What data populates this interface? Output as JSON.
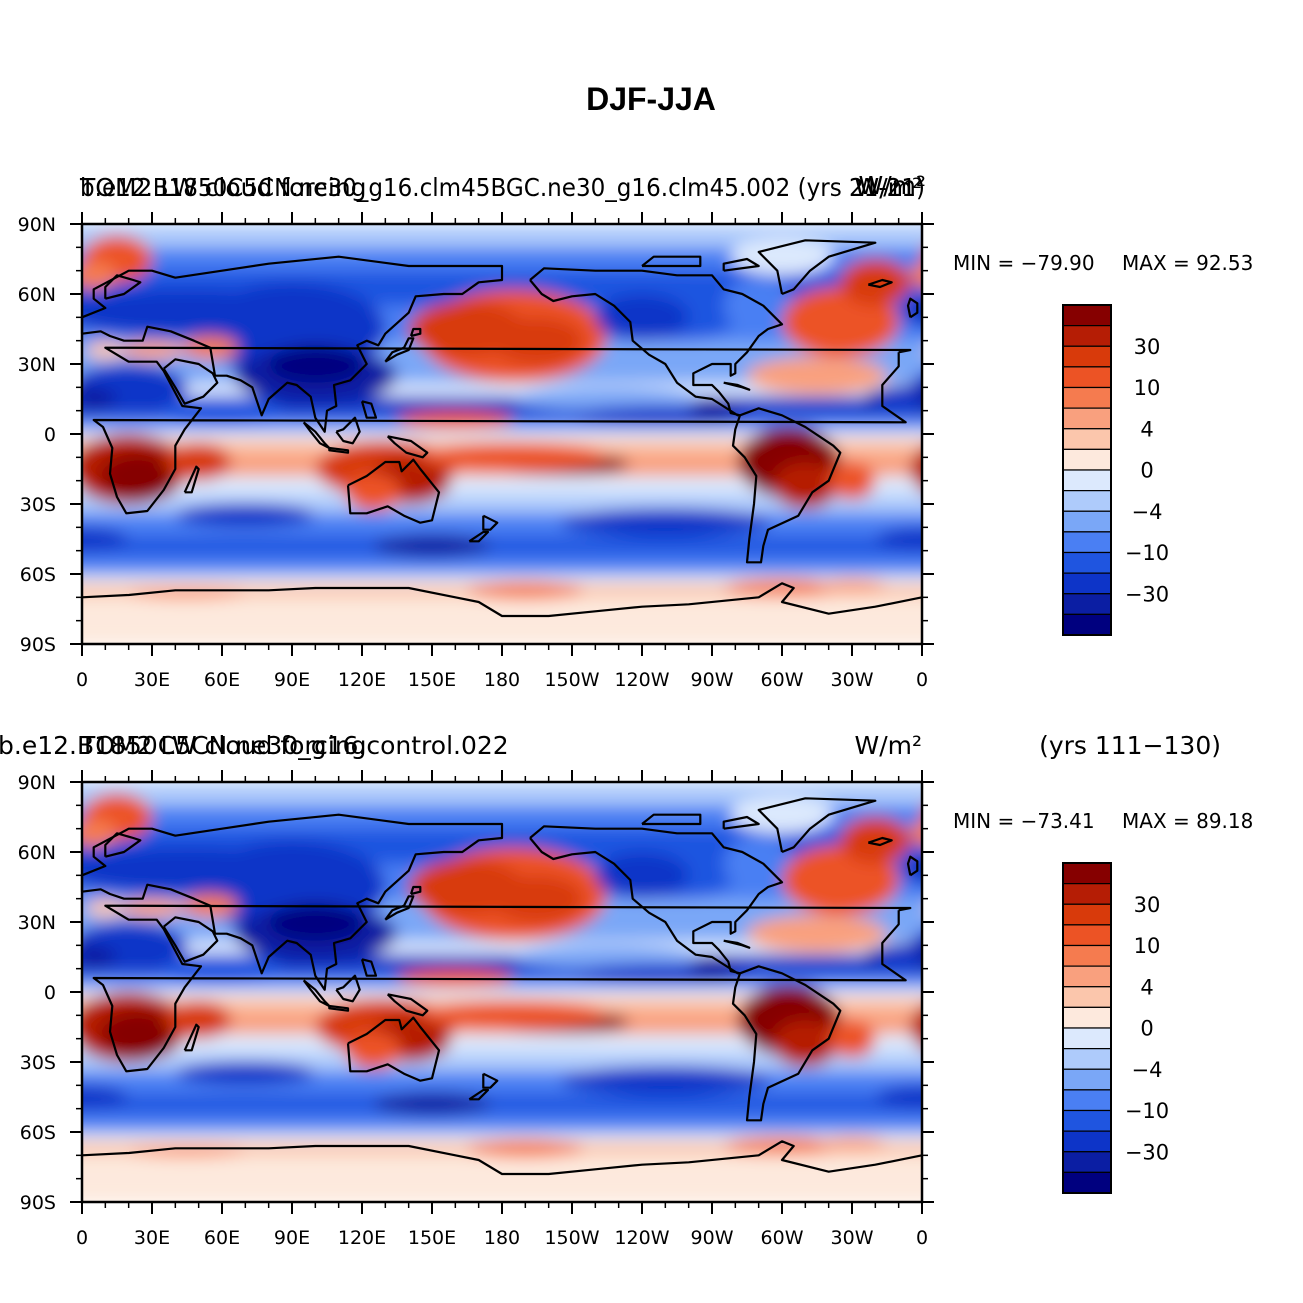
{
  "title": "DJF-JJA",
  "colors": {
    "land_outline": "#000000",
    "levels": [
      "#00007f",
      "#0b1ea3",
      "#0d34c8",
      "#1f55e0",
      "#4a7ff3",
      "#7aa7f7",
      "#aecbfb",
      "#dce9fd",
      "#fde9dd",
      "#fbc6ac",
      "#f9a07e",
      "#f57b4f",
      "#ec5325",
      "#d83a0b",
      "#b51d05",
      "#860000"
    ]
  },
  "panels": [
    {
      "left_label_a": "TOM2 LW cloud forcing",
      "left_label_b": "b.e12.B1850C5CN.ne30_g16.clm45BGC.ne30_g16.clm45.002 (yrs 21-21)",
      "right_label_a": "W/m²",
      "right_label_b": "W/m²",
      "extra_label": "",
      "min_label": "MIN = −79.90",
      "max_label": "MAX =  92.53"
    },
    {
      "left_label_a": "TOM2 LW cloud forcing",
      "left_label_b": "b.e12.B1850C5CN.ne30_g16.control.022",
      "right_label_a": "W/m²",
      "right_label_b": "",
      "extra_label": "(yrs 111−130)",
      "min_label": "MIN = −73.41",
      "max_label": "MAX =  89.18"
    }
  ],
  "lat_ticks": [
    "90N",
    "60N",
    "30N",
    "0",
    "30S",
    "60S",
    "90S"
  ],
  "lon_ticks": [
    "0",
    "30E",
    "60E",
    "90E",
    "120E",
    "150E",
    "180",
    "150W",
    "120W",
    "90W",
    "60W",
    "30W",
    "0"
  ],
  "colorbar_labels": [
    "30",
    "10",
    "4",
    "0",
    "−4",
    "−10",
    "−30"
  ]
}
